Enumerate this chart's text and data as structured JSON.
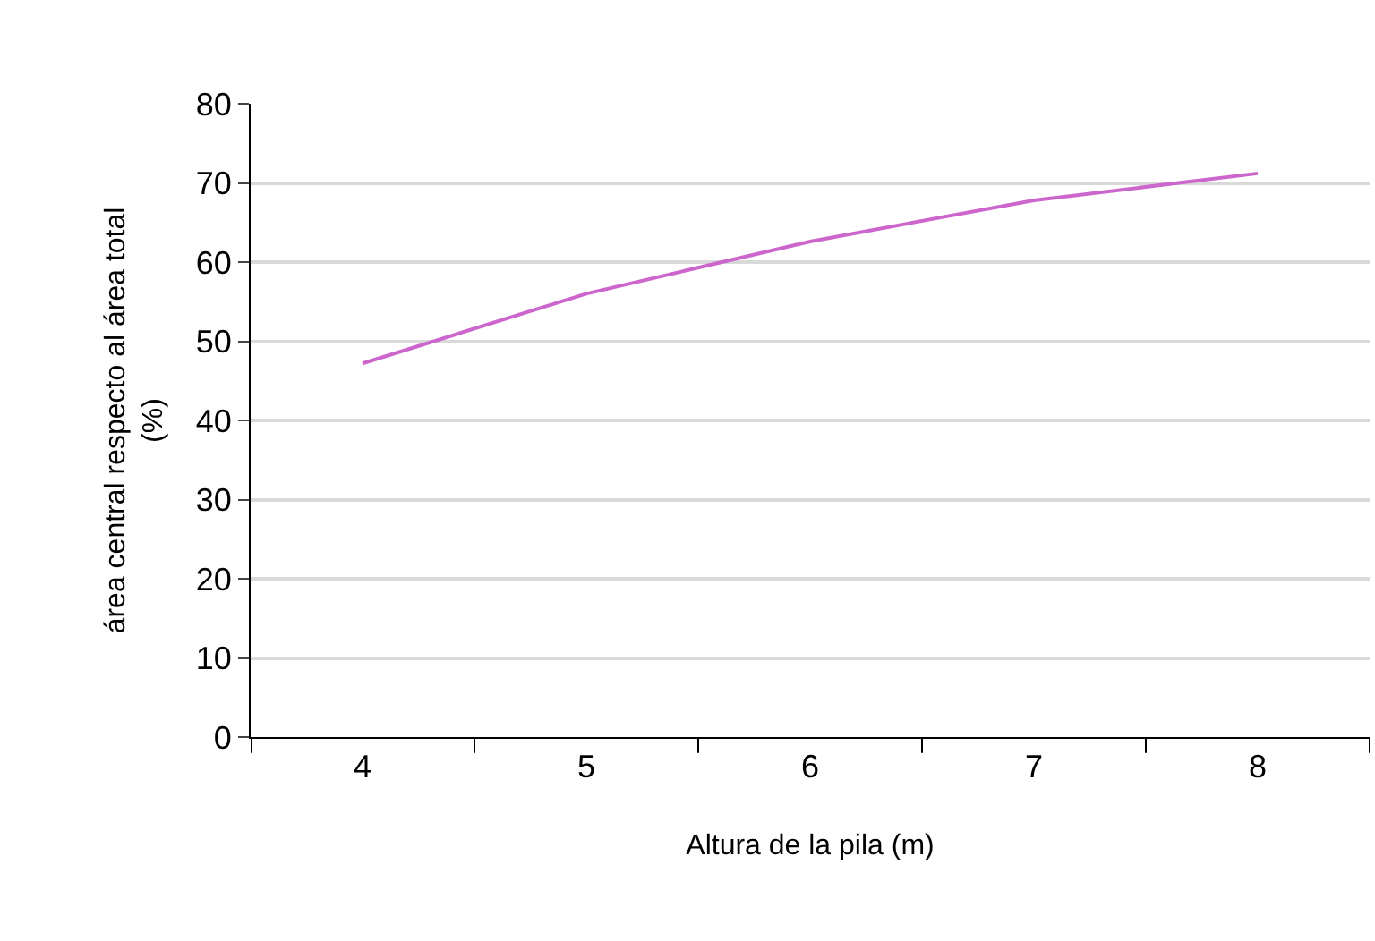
{
  "chart_data": {
    "type": "line",
    "xlabel": "Altura de la pila (m)",
    "ylabel": "área central respecto al área total\n(%)",
    "categories": [
      "4",
      "5",
      "6",
      "7",
      "8"
    ],
    "series": [
      {
        "color": "#cc66cc",
        "values": [
          47.2,
          56.0,
          62.6,
          67.8,
          71.2
        ]
      }
    ],
    "ylim": [
      0,
      80
    ],
    "yticks": [
      0,
      10,
      20,
      30,
      40,
      50,
      60,
      70,
      80
    ],
    "grid": "y",
    "marker": "none",
    "line_style": "solid"
  }
}
